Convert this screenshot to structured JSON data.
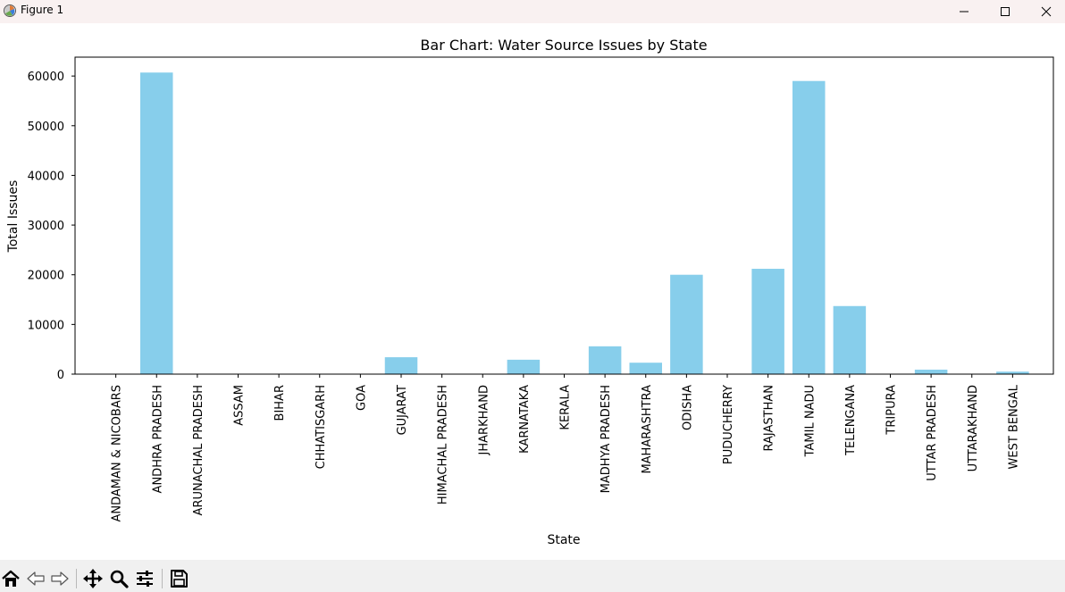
{
  "window": {
    "title": "Figure 1",
    "icons": [
      "matplotlib-app-icon",
      "minimize-icon",
      "maximize-icon",
      "close-icon"
    ]
  },
  "toolbar": {
    "buttons": [
      "home-icon",
      "back-icon",
      "forward-icon",
      "pan-icon",
      "zoom-icon",
      "configure-subplots-icon",
      "save-icon"
    ]
  },
  "chart_data": {
    "type": "bar",
    "title": "Bar Chart: Water Source Issues by State",
    "xlabel": "State",
    "ylabel": "Total Issues",
    "categories": [
      "ANDAMAN & NICOBARS",
      "ANDHRA PRADESH",
      "ARUNACHAL PRADESH",
      "ASSAM",
      "BIHAR",
      "CHHATISGARH",
      "GOA",
      "GUJARAT",
      "HIMACHAL PRADESH",
      "JHARKHAND",
      "KARNATAKA",
      "KERALA",
      "MADHYA PRADESH",
      "MAHARASHTRA",
      "ODISHA",
      "PUDUCHERRY",
      "RAJASTHAN",
      "TAMIL NADU",
      "TELENGANA",
      "TRIPURA",
      "UTTAR PRADESH",
      "UTTARAKHAND",
      "WEST BENGAL"
    ],
    "values": [
      20,
      60700,
      30,
      40,
      30,
      20,
      20,
      3400,
      20,
      20,
      2900,
      10,
      5600,
      2300,
      20000,
      10,
      21200,
      59000,
      13700,
      20,
      900,
      20,
      500
    ],
    "yticks": [
      0,
      10000,
      20000,
      30000,
      40000,
      50000,
      60000
    ],
    "ylim": [
      0,
      63800
    ],
    "bar_color": "#87ceeb",
    "grid": false,
    "legend": "none"
  }
}
